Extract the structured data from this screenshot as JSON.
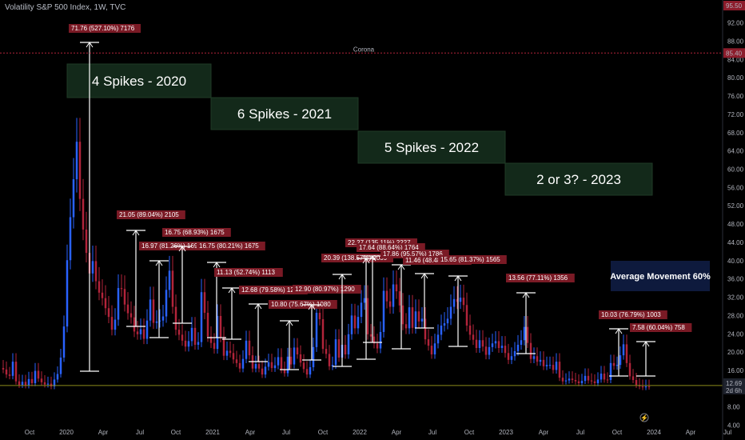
{
  "header": {
    "title": "Volatility S&P 500 Index, 1W, TVC"
  },
  "price_axis": {
    "top_label": "95.50",
    "high_label": "85.40",
    "current_label": "12.69",
    "countdown_label": "2d 6h"
  },
  "resistance_label": "Corona",
  "boxes": [
    {
      "label": "4 Spikes - 2020"
    },
    {
      "label": "6 Spikes - 2021"
    },
    {
      "label": "5 Spikes - 2022"
    },
    {
      "label": "2 or 3? - 2023"
    }
  ],
  "average_box": {
    "label": "Average Movement 60%"
  },
  "colors": {
    "up_candle": "#2962ff",
    "down_candle": "#b2243a",
    "spike_box_fill": "#13291a",
    "avg_box_fill": "#0e1a3d",
    "resistance_line": "#b2243a",
    "current_line": "#8b8b1a",
    "measure_label_bg": "#7a1a25"
  },
  "chart_data": {
    "type": "candlestick",
    "title": "Volatility S&P 500 Index, 1W, TVC",
    "y_ticks": [
      "4.00",
      "8.00",
      "12.00",
      "16.00",
      "20.00",
      "24.00",
      "28.00",
      "32.00",
      "36.00",
      "40.00",
      "44.00",
      "48.00",
      "52.00",
      "56.00",
      "60.00",
      "64.00",
      "68.00",
      "72.00",
      "76.00",
      "80.00",
      "84.00",
      "88.00",
      "92.00"
    ],
    "ylim": [
      2.7,
      97.0
    ],
    "x_ticks": [
      "Oct",
      "2020",
      "Apr",
      "Jul",
      "Oct",
      "2021",
      "Apr",
      "Jul",
      "Oct",
      "2022",
      "Apr",
      "Jul",
      "Oct",
      "2023",
      "Apr",
      "Jul",
      "Oct",
      "2024",
      "Apr",
      "Jul"
    ],
    "closes": [
      16.2,
      15.1,
      14.8,
      17.9,
      13.6,
      12.8,
      13.5,
      12.7,
      14.1,
      13.2,
      15.9,
      14.2,
      13.4,
      12.9,
      13.1,
      12.5,
      14.0,
      15.2,
      18.8,
      25.6,
      40.1,
      49.5,
      57.8,
      66.0,
      53.5,
      46.8,
      41.7,
      37.2,
      39.9,
      35.5,
      33.0,
      31.8,
      29.6,
      27.7,
      24.9,
      27.1,
      34.0,
      33.8,
      30.4,
      28.5,
      27.6,
      24.5,
      23.9,
      25.0,
      22.9,
      26.9,
      31.5,
      26.4,
      26.7,
      26.9,
      27.8,
      33.6,
      37.8,
      29.9,
      24.9,
      23.8,
      22.5,
      21.2,
      22.4,
      25.3,
      21.6,
      22.2,
      33.1,
      28.6,
      23.4,
      22.0,
      20.7,
      27.9,
      23.3,
      19.2,
      20.3,
      19.8,
      18.4,
      17.6,
      16.4,
      18.5,
      22.5,
      19.3,
      16.4,
      17.4,
      16.4,
      15.1,
      16.8,
      17.8,
      16.5,
      17.1,
      18.9,
      16.2,
      15.4,
      19.0,
      17.3,
      21.0,
      19.5,
      17.7,
      16.3,
      15.1,
      16.7,
      21.1,
      28.6,
      27.2,
      20.7,
      19.6,
      16.9,
      17.2,
      22.8,
      18.8,
      21.6,
      19.5,
      23.9,
      28.0,
      25.2,
      27.7,
      30.8,
      31.8,
      23.9,
      23.4,
      21.9,
      20.8,
      24.4,
      33.4,
      31.1,
      29.9,
      34.8,
      33.3,
      30.2,
      26.1,
      25.2,
      29.8,
      25.3,
      28.9,
      26.7,
      27.3,
      22.8,
      21.4,
      19.5,
      21.9,
      23.8,
      25.8,
      26.3,
      27.3,
      29.9,
      31.6,
      31.0,
      31.9,
      30.3,
      25.8,
      23.8,
      22.7,
      20.9,
      22.6,
      21.2,
      19.4,
      21.1,
      21.9,
      22.4,
      20.9,
      21.4,
      19.8,
      18.3,
      19.1,
      20.2,
      21.6,
      22.6,
      25.5,
      22.0,
      18.5,
      19.1,
      17.9,
      18.3,
      16.9,
      17.2,
      17.2,
      16.1,
      17.9,
      14.4,
      13.6,
      13.8,
      14.2,
      13.9,
      13.6,
      13.2,
      13.7,
      14.8,
      13.8,
      13.6,
      13.2,
      14.0,
      15.3,
      14.0,
      13.9,
      17.6,
      17.0,
      17.2,
      19.3,
      21.7,
      17.6,
      14.7,
      13.9,
      12.8,
      12.5,
      12.3,
      12.5,
      12.4
    ]
  },
  "measurements": [
    {
      "label": "71.76 (527.10%) 7176"
    },
    {
      "label": "21.05 (89.04%) 2105"
    },
    {
      "label": "16.97 (81.26%) 1697"
    },
    {
      "label": "16.75 (68.93%) 1675"
    },
    {
      "label": "16.75 (80.21%) 1675"
    },
    {
      "label": "11.13 (52.74%) 1113"
    },
    {
      "label": "12.68 (79.58%) 1268"
    },
    {
      "label": "10.80 (75.67%) 1080"
    },
    {
      "label": "12.90 (80.97%) 1290"
    },
    {
      "label": "20.39 (138.57%) 2039"
    },
    {
      "label": "22.27 (135.11%) 2227"
    },
    {
      "label": "17.64 (88.64%) 1764"
    },
    {
      "label": "17.86 (95.57%) 1786"
    },
    {
      "label": "11.46 (48.48%) 1146"
    },
    {
      "label": "15.65 (81.37%) 1565"
    },
    {
      "label": "13.56 (77.11%) 1356"
    },
    {
      "label": "10.03 (76.79%) 1003"
    },
    {
      "label": "7.58 (60.04%) 758"
    }
  ]
}
